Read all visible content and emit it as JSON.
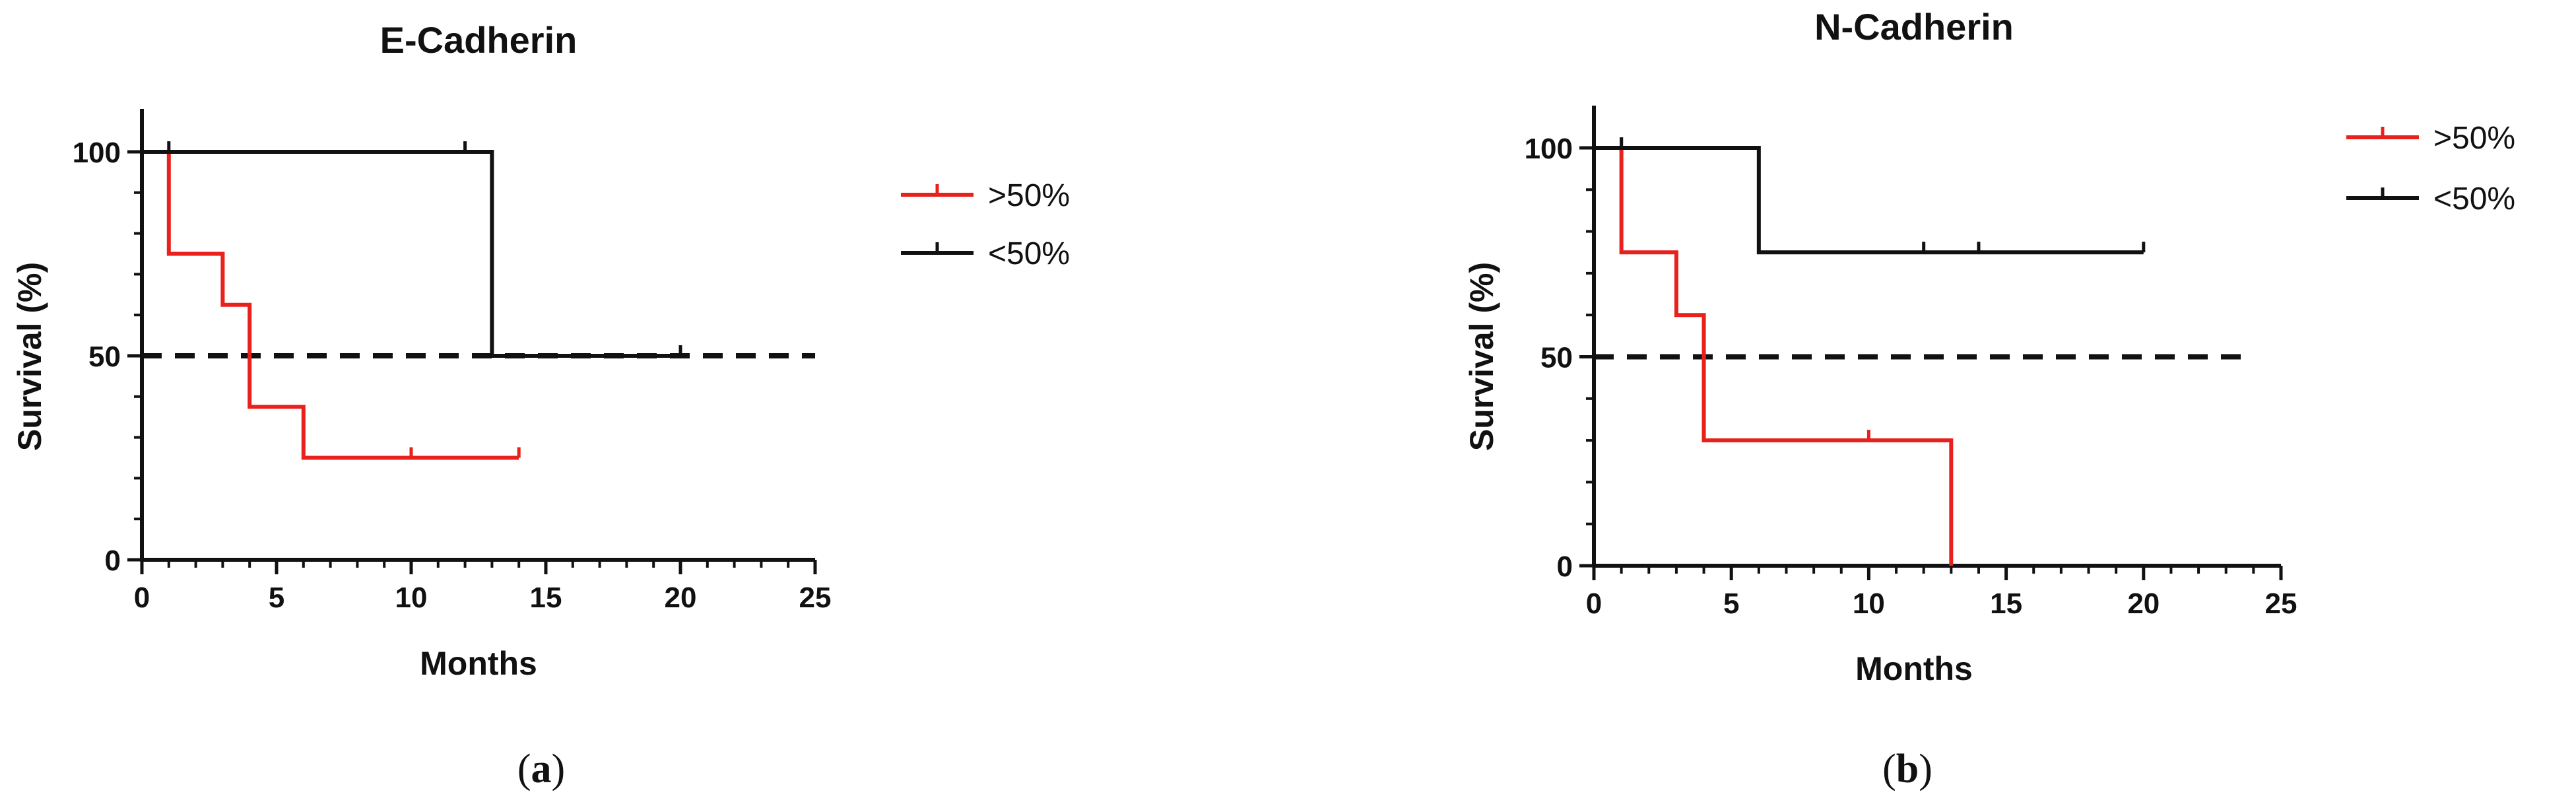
{
  "chart_data": [
    {
      "type": "line",
      "subtype": "kaplan-meier step",
      "panel": "a",
      "title": "E-Cadherin",
      "xlabel": "Months",
      "ylabel": "Survival (%)",
      "xlim": [
        0,
        25
      ],
      "ylim": [
        0,
        100
      ],
      "xticks": [
        0,
        5,
        10,
        15,
        20,
        25
      ],
      "yticks": [
        0,
        50,
        100
      ],
      "reference_line": {
        "y": 50,
        "style": "dashed",
        "x_range": [
          0,
          25
        ]
      },
      "legend_position": "right",
      "grid": false,
      "series": [
        {
          "name": ">50%",
          "color": "#e8211d",
          "steps": [
            [
              0,
              100
            ],
            [
              1,
              75
            ],
            [
              3,
              62.5
            ],
            [
              4,
              37.5
            ],
            [
              6,
              25
            ]
          ],
          "end_x": 14,
          "censor_marks": [
            [
              10,
              25
            ],
            [
              14,
              25
            ]
          ]
        },
        {
          "name": "<50%",
          "color": "#111111",
          "steps": [
            [
              0,
              100
            ],
            [
              13,
              50
            ]
          ],
          "end_x": 20,
          "censor_marks": [
            [
              1,
              100
            ],
            [
              12,
              100
            ],
            [
              20,
              50
            ]
          ]
        }
      ]
    },
    {
      "type": "line",
      "subtype": "kaplan-meier step",
      "panel": "b",
      "title": "N-Cadherin",
      "xlabel": "Months",
      "ylabel": "Survival (%)",
      "xlim": [
        0,
        25
      ],
      "ylim": [
        0,
        100
      ],
      "xticks": [
        0,
        5,
        10,
        15,
        20,
        25
      ],
      "yticks": [
        0,
        50,
        100
      ],
      "reference_line": {
        "y": 50,
        "style": "dashed",
        "x_range": [
          0,
          24
        ]
      },
      "legend_position": "top-right",
      "grid": false,
      "series": [
        {
          "name": ">50%",
          "color": "#e8211d",
          "steps": [
            [
              0,
              100
            ],
            [
              1,
              75
            ],
            [
              3,
              60
            ],
            [
              4,
              30
            ],
            [
              13,
              0
            ]
          ],
          "end_x": 13,
          "censor_marks": [
            [
              1,
              100
            ],
            [
              10,
              30
            ]
          ]
        },
        {
          "name": "<50%",
          "color": "#111111",
          "steps": [
            [
              0,
              100
            ],
            [
              6,
              75
            ]
          ],
          "end_x": 20,
          "censor_marks": [
            [
              1,
              100
            ],
            [
              12,
              75
            ],
            [
              14,
              75
            ],
            [
              20,
              75
            ]
          ]
        }
      ]
    }
  ],
  "captions": [
    {
      "open": "(",
      "letter": "a",
      "close": ")"
    },
    {
      "open": "(",
      "letter": "b",
      "close": ")"
    }
  ]
}
